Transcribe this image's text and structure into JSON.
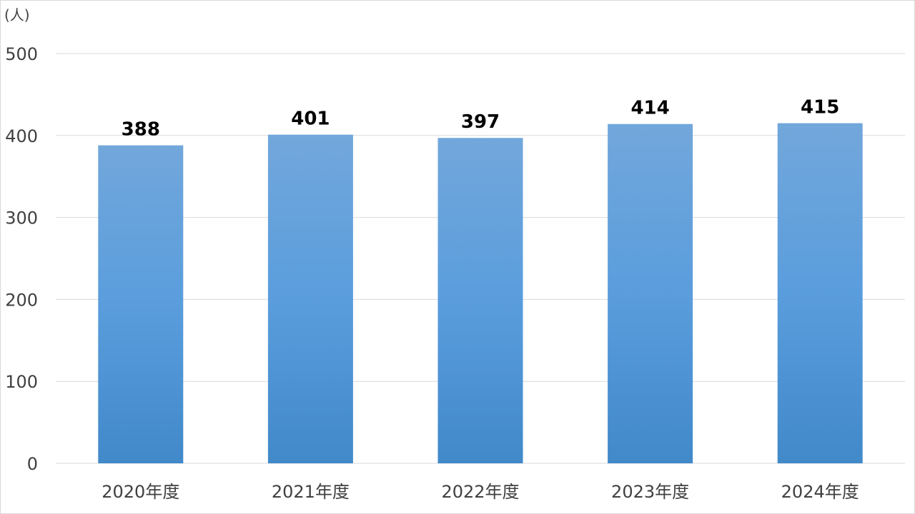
{
  "chart_data": {
    "type": "bar",
    "unit_label": "(人)",
    "categories": [
      "2020年度",
      "2021年度",
      "2022年度",
      "2023年度",
      "2024年度"
    ],
    "values": [
      388,
      401,
      397,
      414,
      415
    ],
    "ylim": [
      0,
      500
    ],
    "yticks": [
      0,
      100,
      200,
      300,
      400,
      500
    ],
    "grid": true,
    "legend": "none",
    "bar_color_top": "#72a7db",
    "bar_color_bottom": "#4189c9",
    "data_labels": true
  }
}
